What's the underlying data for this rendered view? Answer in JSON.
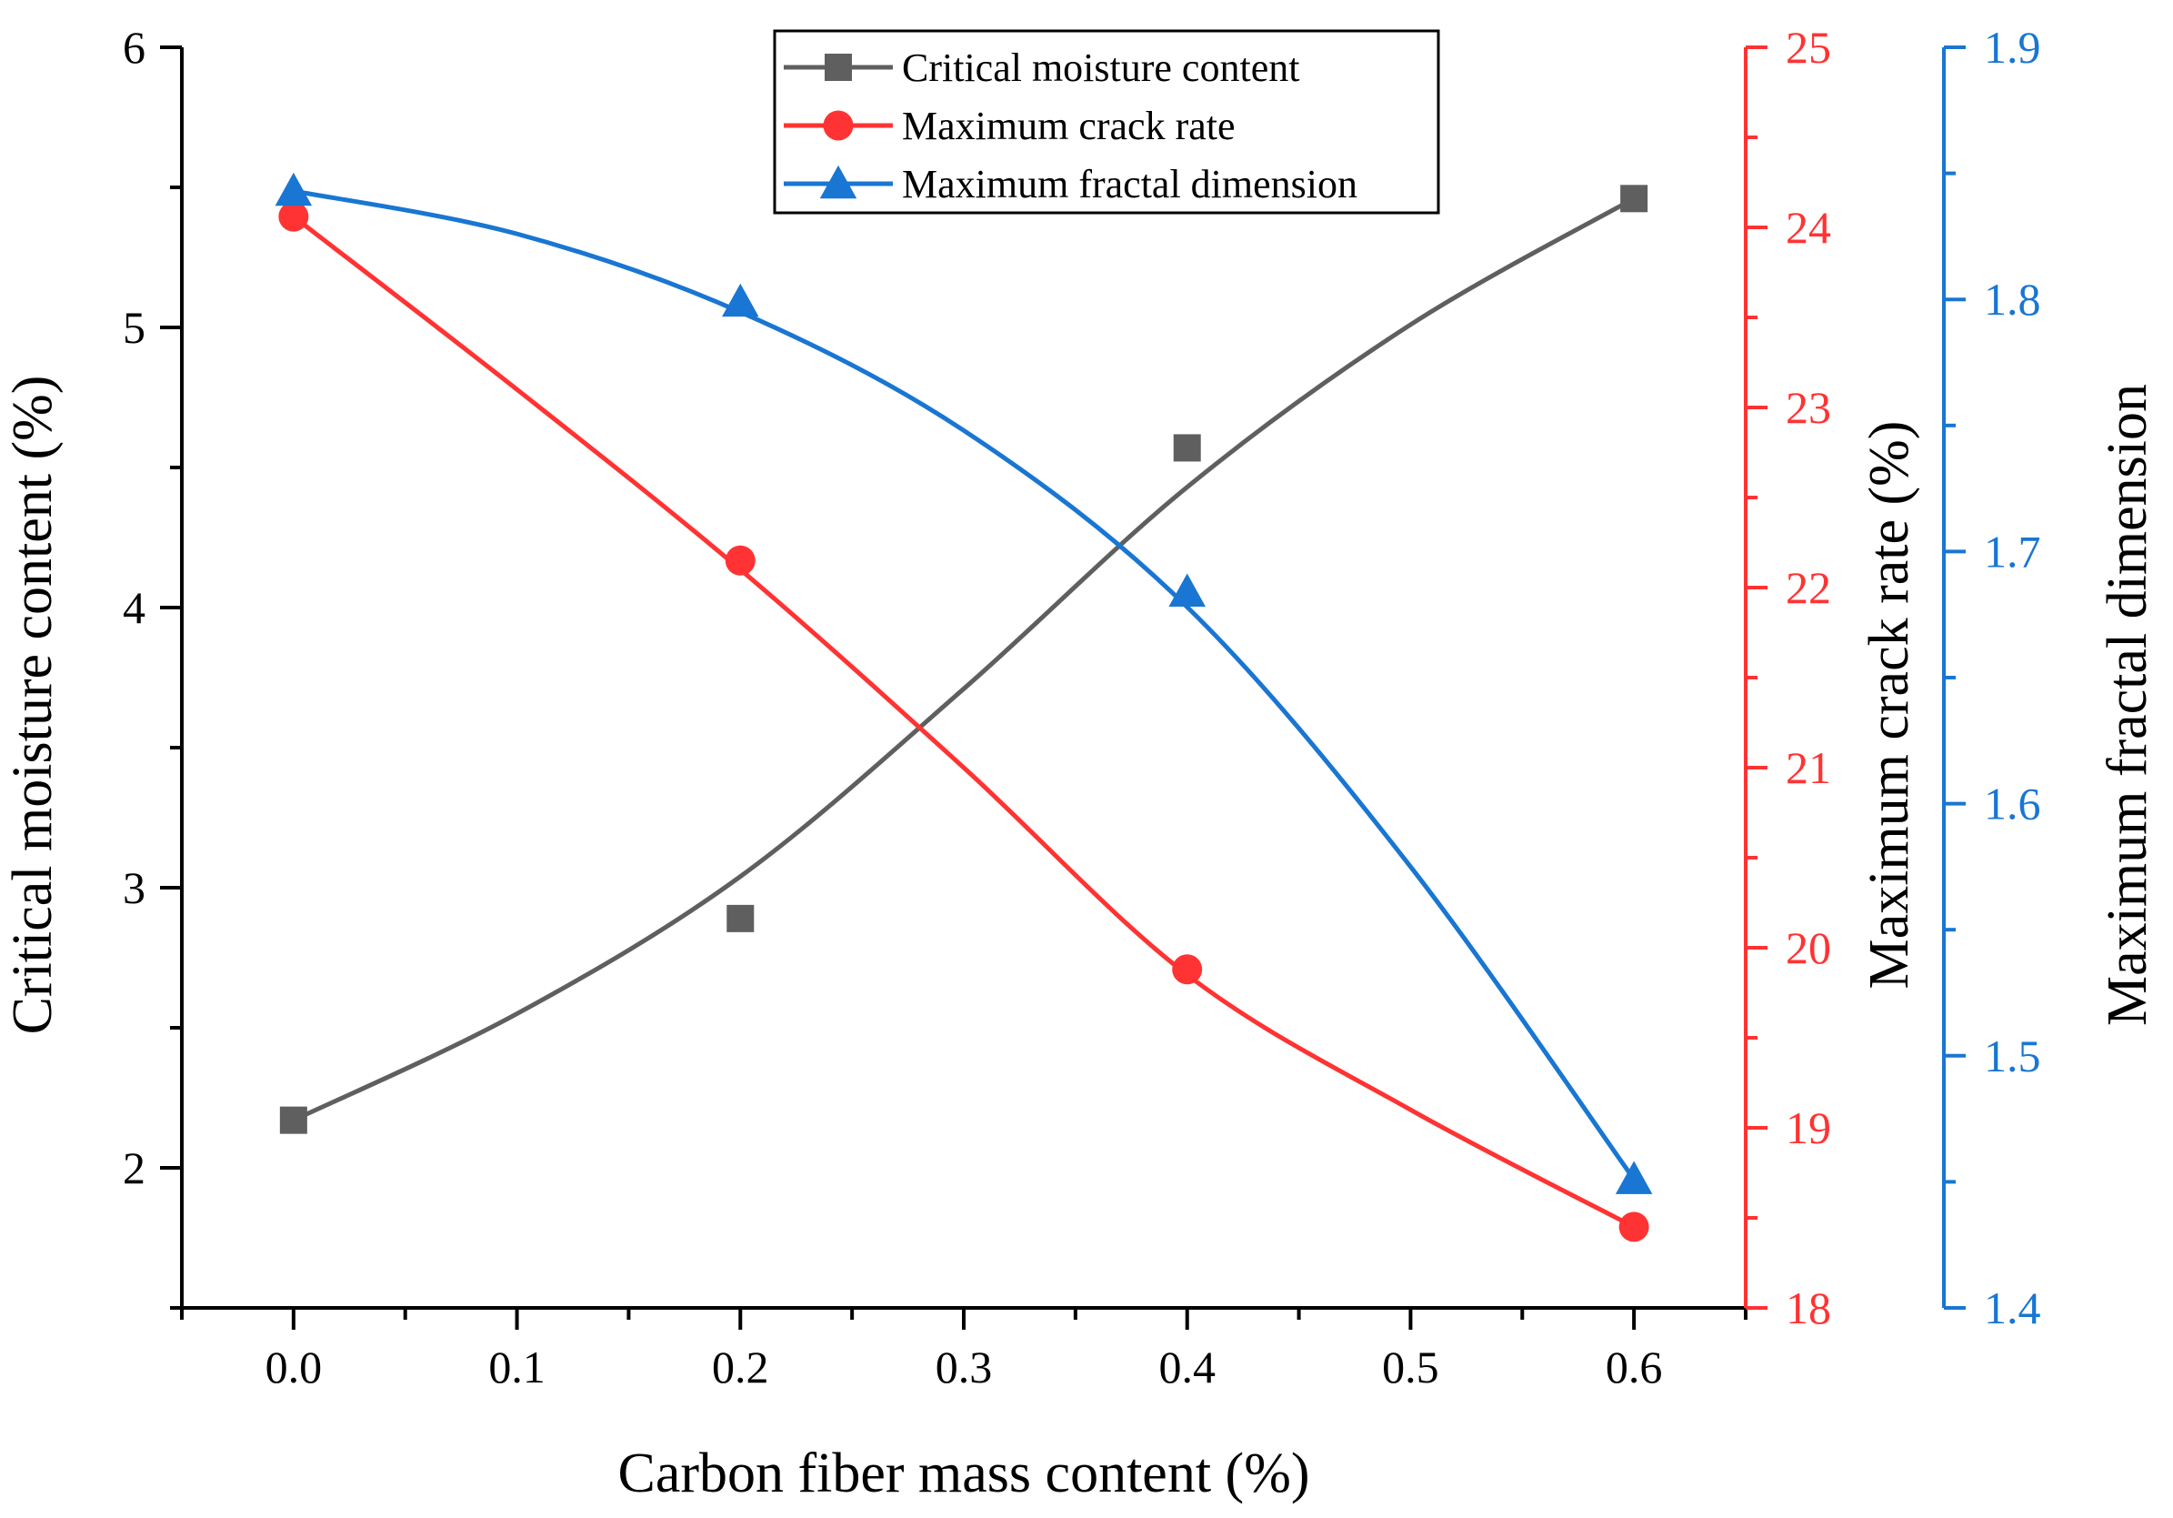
{
  "chart_data": {
    "type": "scatter",
    "title": "",
    "xlabel": "Carbon fiber mass content (%)",
    "x_ticks": [
      "0.0",
      "0.1",
      "0.2",
      "0.3",
      "0.4",
      "0.5",
      "0.6"
    ],
    "xlim": [
      -0.05,
      0.65
    ],
    "axes": [
      {
        "id": "moisture",
        "label": "Critical moisture content (%)",
        "side": "left",
        "ylim": [
          1.5,
          6.0
        ],
        "ticks": [
          "2",
          "3",
          "4",
          "5",
          "6"
        ],
        "color": "#000000"
      },
      {
        "id": "crack",
        "label": "Maximum crack rate (%)",
        "side": "right-inner",
        "ylim": [
          18,
          25
        ],
        "ticks": [
          "18",
          "19",
          "20",
          "21",
          "22",
          "23",
          "24",
          "25"
        ],
        "color": "#ff3333"
      },
      {
        "id": "fractal",
        "label": "Maximum fractal dimension",
        "side": "right-outer",
        "ylim": [
          1.4,
          1.9
        ],
        "ticks": [
          "1.4",
          "1.5",
          "1.6",
          "1.7",
          "1.8",
          "1.9"
        ],
        "color": "#1976d2"
      }
    ],
    "series": [
      {
        "name": "Critical moisture content",
        "axis": "moisture",
        "marker": "square",
        "color": "#5f5f5f",
        "x": [
          0.0,
          0.2,
          0.4,
          0.6
        ],
        "values": [
          2.17,
          2.89,
          4.57,
          5.46
        ],
        "fit": [
          2.17,
          2.55,
          3.04,
          3.71,
          4.43,
          5.01,
          5.46
        ]
      },
      {
        "name": "Maximum crack rate",
        "axis": "crack",
        "marker": "circle",
        "color": "#ff3333",
        "x": [
          0.0,
          0.2,
          0.4,
          0.6
        ],
        "values": [
          24.06,
          22.15,
          19.88,
          18.45
        ],
        "fit": [
          24.06,
          23.1,
          22.1,
          21.0,
          19.85,
          19.1,
          18.45
        ]
      },
      {
        "name": "Maximum fractal dimension",
        "axis": "fractal",
        "marker": "triangle",
        "color": "#1976d2",
        "x": [
          0.0,
          0.2,
          0.4,
          0.6
        ],
        "values": [
          1.843,
          1.799,
          1.684,
          1.451
        ],
        "fit": [
          1.843,
          1.826,
          1.795,
          1.748,
          1.678,
          1.575,
          1.451
        ]
      }
    ],
    "fit_x": [
      0.0,
      0.1,
      0.2,
      0.3,
      0.4,
      0.5,
      0.6
    ],
    "legend_position": "top-center"
  }
}
